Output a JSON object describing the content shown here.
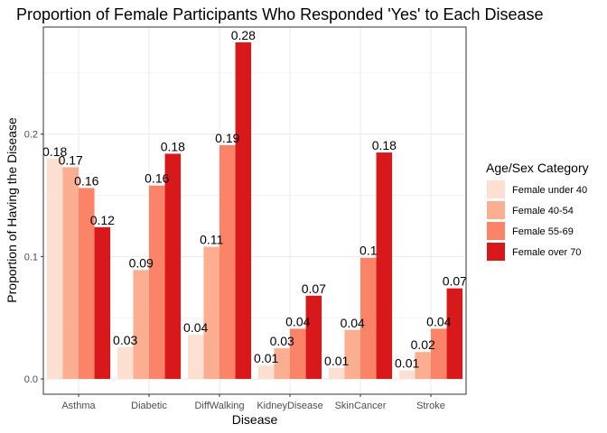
{
  "chart_data": {
    "type": "bar",
    "title": "Proportion of Female Participants Who Responded 'Yes' to Each Disease",
    "xlabel": "Disease",
    "ylabel": "Proportion of Having the Disease",
    "categories": [
      "Asthma",
      "Diabetic",
      "DiffWalking",
      "KidneyDisease",
      "SkinCancer",
      "Stroke"
    ],
    "ylim": [
      -0.0125,
      0.2875
    ],
    "yticks": [
      0.0,
      0.1,
      0.2
    ],
    "ytick_labels": [
      "0.0",
      "0.1",
      "0.2"
    ],
    "grid": true,
    "legend": {
      "title": "Age/Sex Category",
      "position": "right"
    },
    "series": [
      {
        "name": "Female under 40",
        "color": "#fee0d2",
        "values": [
          0.18,
          0.026,
          0.036,
          0.011,
          0.009,
          0.007
        ],
        "labels": [
          "0.18",
          "0.03",
          "0.04",
          "0.01",
          "0.01",
          "0.01"
        ]
      },
      {
        "name": "Female 40-54",
        "color": "#fcae91",
        "values": [
          0.173,
          0.089,
          0.108,
          0.025,
          0.04,
          0.022
        ],
        "labels": [
          "0.17",
          "0.09",
          "0.11",
          "0.03",
          "0.04",
          "0.02"
        ]
      },
      {
        "name": "Female 55-69",
        "color": "#fb8468",
        "values": [
          0.156,
          0.158,
          0.191,
          0.041,
          0.099,
          0.041
        ],
        "labels": [
          "0.16",
          "0.16",
          "0.19",
          "0.04",
          "0.1",
          "0.04"
        ]
      },
      {
        "name": "Female over 70",
        "color": "#d7191c",
        "values": [
          0.124,
          0.184,
          0.275,
          0.068,
          0.185,
          0.074
        ],
        "labels": [
          "0.12",
          "0.18",
          "0.28",
          "0.07",
          "0.18",
          "0.07"
        ]
      }
    ]
  }
}
